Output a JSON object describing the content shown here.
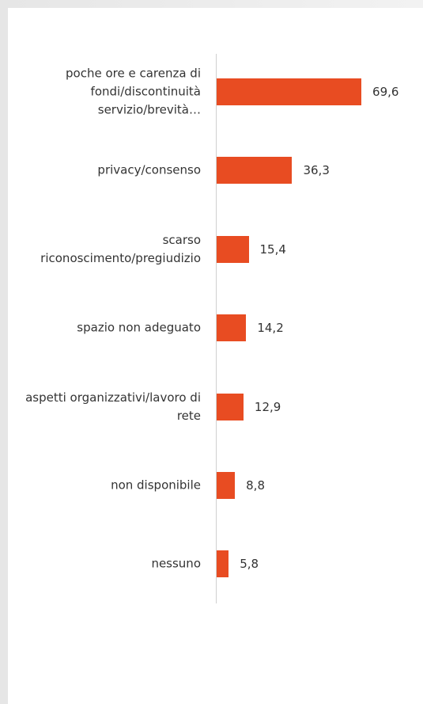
{
  "chart_data": {
    "type": "bar",
    "orientation": "horizontal",
    "categories": [
      "poche ore e carenza di fondi/discontinuità servizio/brevità…",
      "privacy/consenso",
      "scarso riconoscimento/pregiudizio",
      "spazio non adeguato",
      "aspetti organizzativi/lavoro di rete",
      "non disponibile",
      "nessuno"
    ],
    "values": [
      69.6,
      36.3,
      15.4,
      14.2,
      12.9,
      8.8,
      5.8
    ],
    "value_labels": [
      "69,6",
      "36,3",
      "15,4",
      "14,2",
      "12,9",
      "8,8",
      "5,8"
    ],
    "color": "#e84c22"
  }
}
